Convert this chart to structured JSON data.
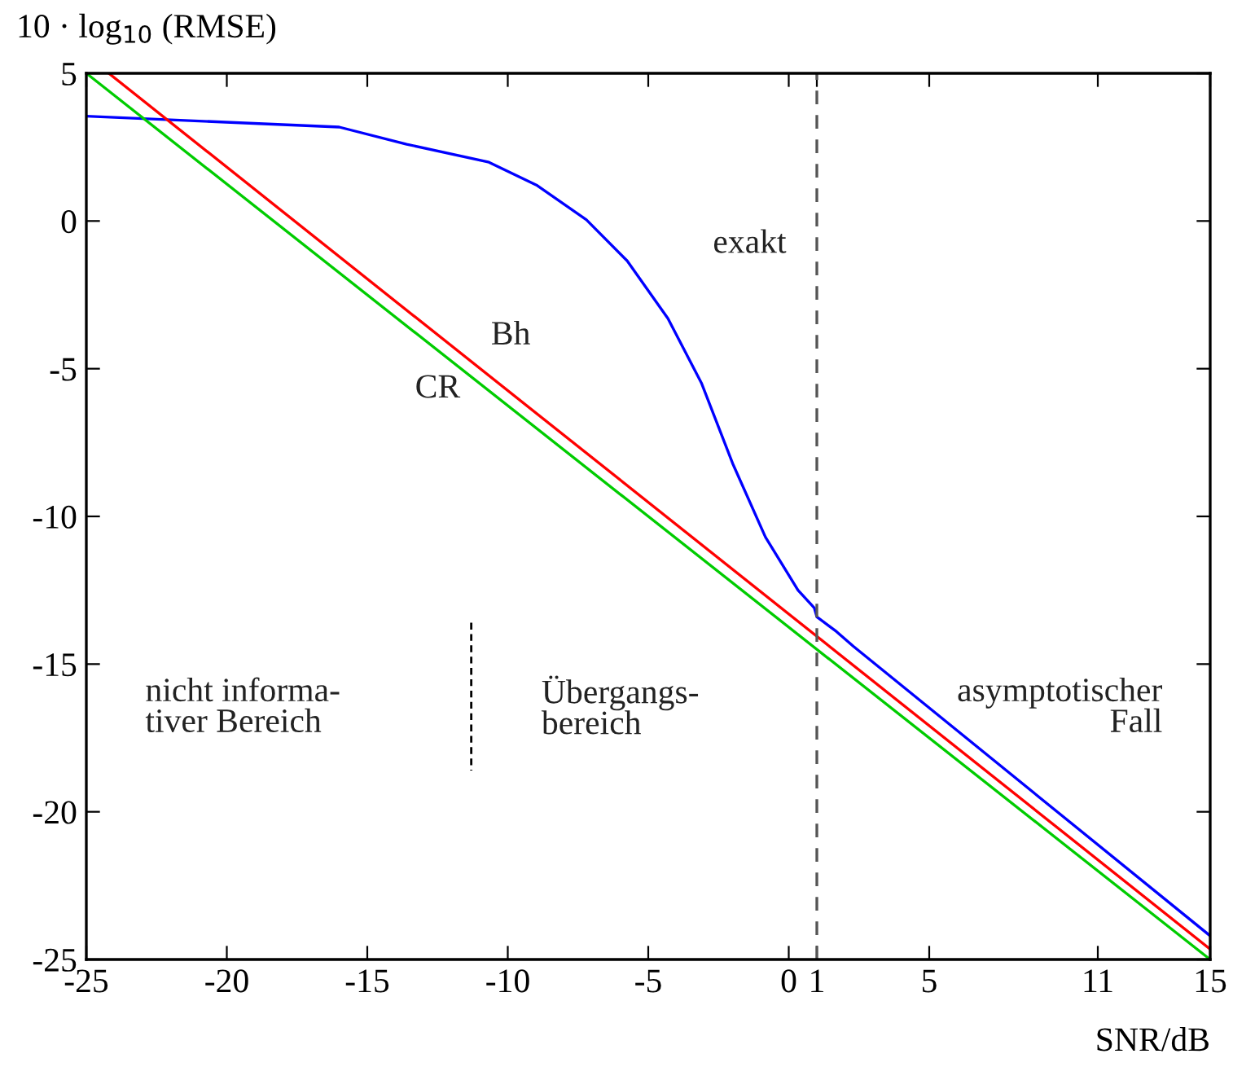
{
  "chart_data": {
    "type": "line",
    "xlabel": "SNR/dB",
    "ylabel": "10 · log$_{10}$ (RMSE)",
    "xlim": [
      -25,
      15
    ],
    "ylim": [
      -25,
      5
    ],
    "xticks": [
      -25,
      -20,
      -15,
      -10,
      -5,
      0,
      1,
      5,
      11,
      15
    ],
    "yticks": [
      -25,
      -20,
      -15,
      -10,
      -5,
      0,
      5
    ],
    "grid": false,
    "legend": false,
    "marker": "none",
    "line_style": "solid",
    "series": [
      {
        "name": "exakt",
        "color": "#0000ff",
        "x": [
          -25,
          -16,
          -13.6,
          -10.7,
          -8.95,
          -7.2,
          -5.75,
          -4.3,
          -3.1,
          -2.0,
          -0.83,
          0.33,
          0.91,
          1.0,
          1.7,
          2.3,
          15
        ],
        "values": [
          3.55,
          3.18,
          2.6,
          2.0,
          1.2,
          0.04,
          -1.35,
          -3.3,
          -5.5,
          -8.2,
          -10.7,
          -12.5,
          -13.1,
          -13.4,
          -13.9,
          -14.4,
          -24.2
        ]
      },
      {
        "name": "Bh",
        "color": "#ff0000",
        "x": [
          -24.2,
          15
        ],
        "values": [
          5,
          -24.65
        ]
      },
      {
        "name": "CR",
        "color": "#00cc00",
        "x": [
          -25,
          15
        ],
        "values": [
          5,
          -25
        ]
      }
    ],
    "ref_lines": [
      {
        "axis": "x",
        "value": 1,
        "color": "#555555",
        "line_style": "dashed"
      }
    ],
    "annotations": [
      "nicht informa-\ntiver Bereich",
      "Übergangs-\nbereich",
      "asymptotischer\nFall"
    ]
  }
}
